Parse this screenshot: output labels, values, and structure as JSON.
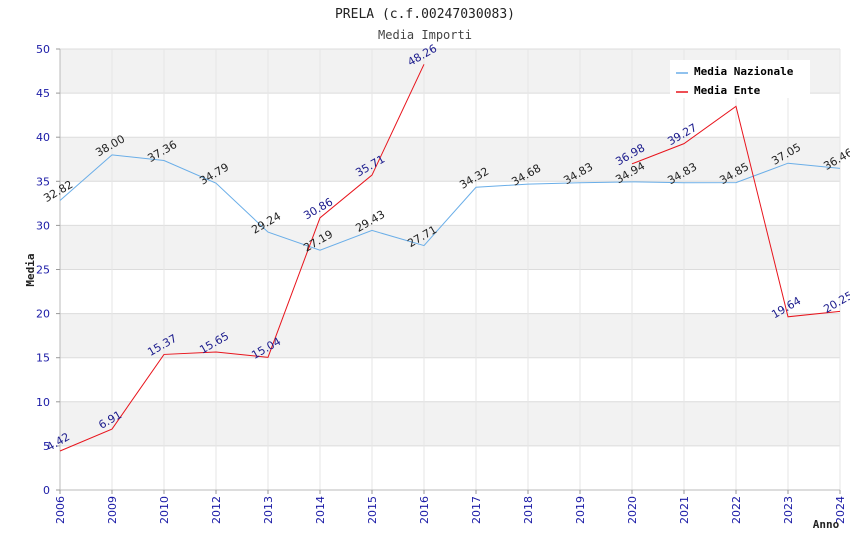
{
  "chart_data": {
    "type": "line",
    "title": "PRELA (c.f.00247030083)",
    "subtitle": "Media Importi",
    "xlabel": "Anno",
    "ylabel": "Media",
    "ylim": [
      0,
      50
    ],
    "yticks": [
      "0",
      "5",
      "10",
      "15",
      "20",
      "25",
      "30",
      "35",
      "40",
      "45",
      "50"
    ],
    "categories": [
      "2006",
      "2009",
      "2010",
      "2012",
      "2013",
      "2014",
      "2015",
      "2016",
      "2017",
      "2018",
      "2019",
      "2020",
      "2021",
      "2022",
      "2023",
      "2024"
    ],
    "series": [
      {
        "name": "Media Nazionale",
        "color": "#6aaee8",
        "values": [
          32.82,
          38.0,
          37.36,
          34.79,
          29.24,
          27.19,
          29.43,
          27.71,
          34.32,
          34.68,
          34.83,
          34.94,
          34.83,
          34.85,
          37.05,
          36.46
        ],
        "labels": [
          "32.82",
          "38.00",
          "37.36",
          "34.79",
          "29.24",
          "27.19",
          "29.43",
          "27.71",
          "34.32",
          "34.68",
          "34.83",
          "34.94",
          "34.83",
          "34.85",
          "37.05",
          "36.46"
        ]
      },
      {
        "name": "Media Ente",
        "color": "#e8141c",
        "values": [
          4.42,
          6.91,
          15.37,
          15.65,
          15.04,
          30.86,
          35.71,
          48.26,
          null,
          null,
          null,
          36.98,
          39.27,
          43.5,
          19.64,
          20.25
        ],
        "labels": [
          "4.42",
          "6.91",
          "15.37",
          "15.65",
          "15.04",
          "30.86",
          "35.71",
          "48.26",
          null,
          null,
          null,
          "36.98",
          "39.27",
          null,
          "19.64",
          "20.25"
        ]
      }
    ],
    "legend": "top-right",
    "grid": true
  }
}
